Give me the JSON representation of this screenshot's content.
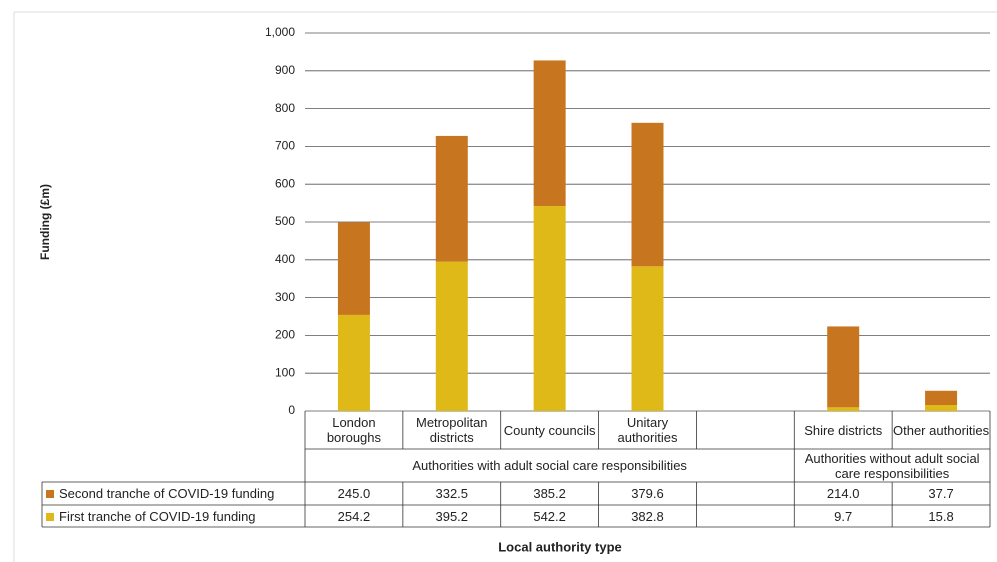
{
  "chart_data": {
    "type": "bar",
    "stacked": true,
    "y_label": "Funding (£m)",
    "x_label": "Local authority type",
    "categories": [
      "London boroughs",
      "Metropolitan districts",
      "County councils",
      "Unitary authorities",
      null,
      "Shire districts",
      "Other authorities"
    ],
    "groups": [
      {
        "label": "Authorities with adult social care responsibilities",
        "span": 5
      },
      {
        "label": "Authorities without adult social care responsibilities",
        "span": 2
      }
    ],
    "series": [
      {
        "name": "Second tranche of COVID-19 funding",
        "color": "#c87520",
        "values": [
          245.0,
          332.5,
          385.2,
          379.6,
          null,
          214.0,
          37.7
        ],
        "value_labels": [
          "245.0",
          "332.5",
          "385.2",
          "379.6",
          null,
          "214.0",
          "37.7"
        ]
      },
      {
        "name": "First tranche of COVID-19 funding",
        "color": "#dfb918",
        "values": [
          254.2,
          395.2,
          542.2,
          382.8,
          null,
          9.7,
          15.8
        ],
        "value_labels": [
          "254.2",
          "395.2",
          "542.2",
          "382.8",
          null,
          "9.7",
          "15.8"
        ]
      }
    ],
    "ylim": [
      0,
      1000
    ],
    "yticks": [
      0,
      100,
      200,
      300,
      400,
      500,
      600,
      700,
      800,
      900,
      {
        "value": 1000,
        "label": "1,000"
      }
    ],
    "grid": true
  }
}
